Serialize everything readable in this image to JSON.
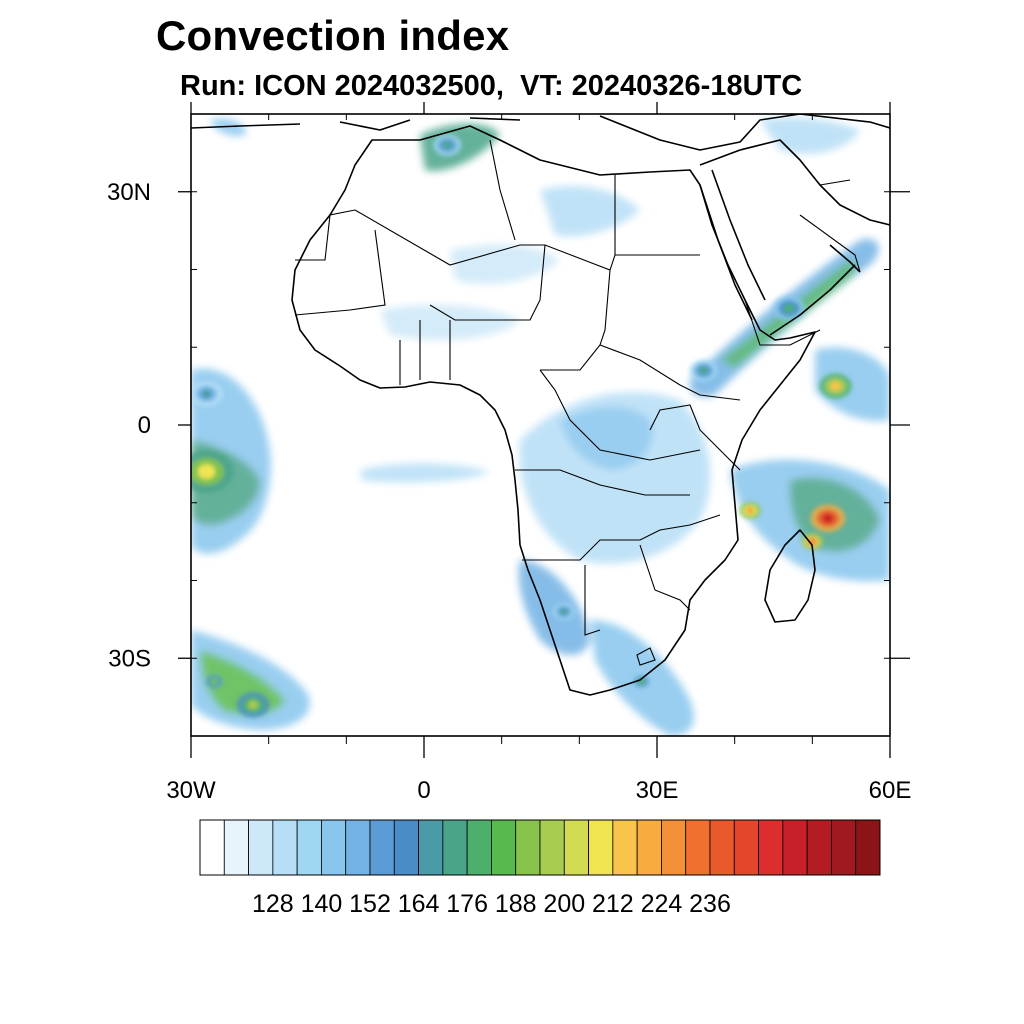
{
  "header": {
    "title": "Convection index",
    "subtitle": "Run: ICON 2024032500,  VT: 20240326-18UTC"
  },
  "map": {
    "lon_range": [
      -30,
      60
    ],
    "lat_range": [
      -40,
      40
    ],
    "lat_ticks": [
      {
        "value": 30,
        "label": "30N"
      },
      {
        "value": 0,
        "label": "0"
      },
      {
        "value": -30,
        "label": "30S"
      }
    ],
    "lon_ticks": [
      {
        "value": -30,
        "label": "30W"
      },
      {
        "value": 0,
        "label": "0"
      },
      {
        "value": 30,
        "label": "30E"
      },
      {
        "value": 60,
        "label": "60E"
      }
    ]
  },
  "colorbar": {
    "colors": [
      "#ffffff",
      "#e8f4fc",
      "#cde8f8",
      "#b6def6",
      "#9ed6f4",
      "#88c6ee",
      "#72b2e4",
      "#5c9cd6",
      "#4a8cc6",
      "#4a9aa8",
      "#4aa48a",
      "#4cb06c",
      "#58ba4e",
      "#88c44c",
      "#a8cc50",
      "#d2dc52",
      "#f0e452",
      "#f8c44c",
      "#f8ac40",
      "#f49038",
      "#f07030",
      "#e85a2c",
      "#e4462c",
      "#dc2e2c",
      "#c82028",
      "#b41c24",
      "#a01820",
      "#8a1418"
    ],
    "labels": [
      "128",
      "140",
      "152",
      "164",
      "176",
      "188",
      "200",
      "212",
      "224",
      "236"
    ]
  },
  "convection_cells": [
    {
      "lon": -28,
      "lat": -6,
      "r": 2.5,
      "level": 16
    },
    {
      "lon": 52,
      "lat": -12,
      "r": 1.6,
      "level": 24
    },
    {
      "lon": 53,
      "lat": 5,
      "r": 1.5,
      "level": 17
    },
    {
      "lon": 42,
      "lat": -11,
      "r": 1.0,
      "level": 19
    },
    {
      "lon": -22,
      "lat": -36,
      "r": 1.5,
      "level": 14
    },
    {
      "lon": -27,
      "lat": -33,
      "r": 0.8,
      "level": 13
    },
    {
      "lon": 47,
      "lat": 15,
      "r": 1.5,
      "level": 11
    },
    {
      "lon": 36,
      "lat": 7,
      "r": 1.3,
      "level": 10
    },
    {
      "lon": 50,
      "lat": -15,
      "r": 1.0,
      "level": 20
    },
    {
      "lon": 18,
      "lat": -24,
      "r": 1.0,
      "level": 10
    },
    {
      "lon": 3,
      "lat": 36,
      "r": 1.3,
      "level": 10
    },
    {
      "lon": 28,
      "lat": -33,
      "r": 0.8,
      "level": 12
    },
    {
      "lon": -28,
      "lat": 4,
      "r": 1.5,
      "level": 9
    }
  ]
}
